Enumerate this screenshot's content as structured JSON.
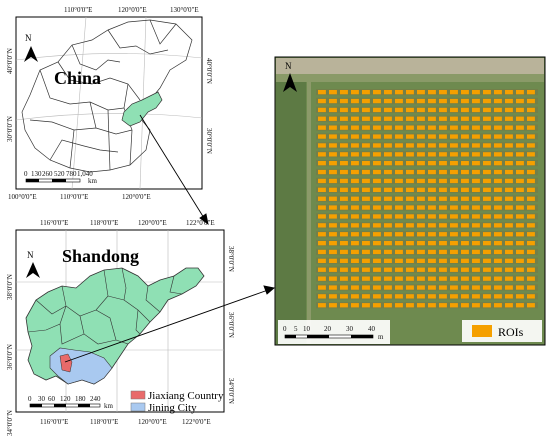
{
  "china_map": {
    "title": "China",
    "north": "N",
    "lon_ticks_top": [
      "110°0'0\"E",
      "120°0'0\"E",
      "130°0'0\"E"
    ],
    "lon_ticks_bottom": [
      "100°0'0\"E",
      "110°0'0\"E",
      "120°0'0\"E"
    ],
    "lat_ticks_left": [
      "40°0'0\"N",
      "30°0'0\"N"
    ],
    "lat_ticks_right": [
      "30°0'0\"N",
      "40°0'0\"N"
    ],
    "scale_labels": [
      "0",
      "130",
      "260",
      "520",
      "780",
      "1,040"
    ],
    "scale_unit": "km"
  },
  "shandong_map": {
    "title": "Shandong",
    "north": "N",
    "lon_ticks_top": [
      "116°0'0\"E",
      "118°0'0\"E",
      "120°0'0\"E",
      "122°0'0\"E"
    ],
    "lon_ticks_bottom": [
      "116°0'0\"E",
      "118°0'0\"E",
      "120°0'0\"E",
      "122°0'0\"E"
    ],
    "lat_ticks_left": [
      "38°0'0\"N",
      "36°0'0\"N",
      "34°0'0\"N"
    ],
    "lat_ticks_right": [
      "38°0'0\"N",
      "36°0'0\"N",
      "34°0'0\"N"
    ],
    "scale_labels": [
      "0",
      "30",
      "60",
      "120",
      "180",
      "240"
    ],
    "scale_unit": "km",
    "legend": [
      {
        "label": "Jiaxiang Country",
        "color": "#e86a6a"
      },
      {
        "label": "Jining City",
        "color": "#a9c9f0"
      }
    ]
  },
  "field_map": {
    "north": "N",
    "scale_labels": [
      "0",
      "5",
      "10",
      "20",
      "30",
      "40"
    ],
    "scale_unit": "m",
    "legend": [
      {
        "label": "ROIs",
        "color": "#f5a000"
      }
    ]
  },
  "colors": {
    "shandong_fill": "#8fe0b4",
    "jining_fill": "#a9c9f0",
    "jiaxiang_fill": "#e86a6a",
    "china_highlight": "#8fe0b4",
    "roi": "#f5a000",
    "field_bg": "#6e8a4f"
  }
}
